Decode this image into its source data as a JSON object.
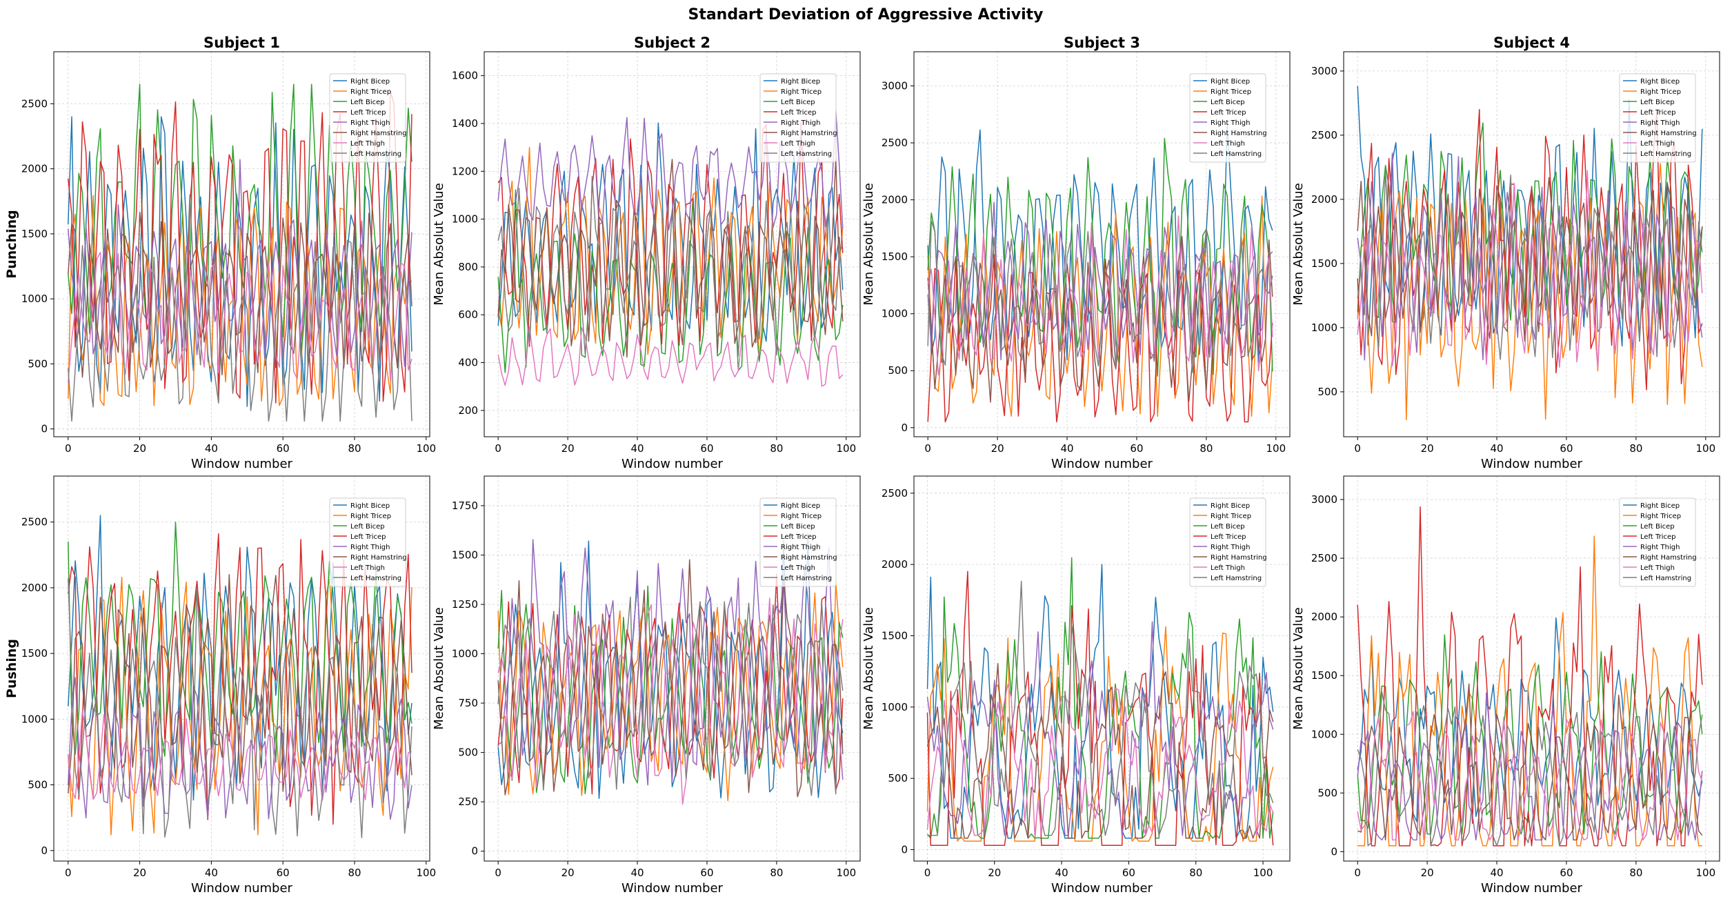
{
  "figure": {
    "suptitle": "Standart Deviation of Aggressive Activity"
  },
  "colors": {
    "Right Bicep": "#1f77b4",
    "Right Tricep": "#ff7f0e",
    "Left Bicep": "#2ca02c",
    "Left Tricep": "#d62728",
    "Right Thigh": "#9467bd",
    "Right Hamstring": "#8c564b",
    "Left Thigh": "#e377c2",
    "Left Hamstring": "#7f7f7f"
  },
  "chart_data": [
    {
      "type": "line",
      "row_label": "Punching",
      "title": "Subject 1",
      "xlabel": "Window number",
      "ylabel": "",
      "n_points": 97,
      "xlim": [
        -4,
        101
      ],
      "ylim": [
        -60,
        2900
      ],
      "xticks": [
        0,
        20,
        40,
        60,
        80,
        100
      ],
      "yticks": [
        0,
        500,
        1000,
        1500,
        2000,
        2500
      ],
      "grid": true,
      "legend": "upper right (inset)",
      "series": [
        {
          "name": "Right Bicep",
          "mean": 1200,
          "amp": 800,
          "period": 5.2,
          "min": 150,
          "max": 2400,
          "seed": 11
        },
        {
          "name": "Right Tricep",
          "mean": 900,
          "amp": 650,
          "period": 5.0,
          "min": 180,
          "max": 2200,
          "seed": 12
        },
        {
          "name": "Left Bicep",
          "mean": 1500,
          "amp": 700,
          "period": 5.4,
          "min": 300,
          "max": 2650,
          "seed": 13
        },
        {
          "name": "Left Tricep",
          "mean": 1300,
          "amp": 900,
          "period": 5.1,
          "min": 200,
          "max": 2600,
          "seed": 14
        },
        {
          "name": "Right Thigh",
          "mean": 1100,
          "amp": 450,
          "period": 4.8,
          "min": 400,
          "max": 2800,
          "seed": 15
        },
        {
          "name": "Right Hamstring",
          "mean": 1000,
          "amp": 450,
          "period": 4.9,
          "min": 250,
          "max": 2000,
          "seed": 16
        },
        {
          "name": "Left Thigh",
          "mean": 800,
          "amp": 350,
          "period": 5.3,
          "min": 200,
          "max": 1600,
          "seed": 17
        },
        {
          "name": "Left Hamstring",
          "mean": 700,
          "amp": 550,
          "period": 5.0,
          "min": 60,
          "max": 1800,
          "seed": 18
        }
      ]
    },
    {
      "type": "line",
      "row_label": "",
      "title": "Subject 2",
      "xlabel": "Window number",
      "ylabel": "Mean Absolut Value",
      "n_points": 100,
      "xlim": [
        -4,
        104
      ],
      "ylim": [
        90,
        1700
      ],
      "xticks": [
        0,
        20,
        40,
        60,
        80,
        100
      ],
      "yticks": [
        200,
        400,
        600,
        800,
        1000,
        1200,
        1400,
        1600
      ],
      "grid": true,
      "legend": "upper right (inset)",
      "series": [
        {
          "name": "Right Bicep",
          "mean": 850,
          "amp": 300,
          "period": 5.5,
          "min": 380,
          "max": 1550,
          "seed": 21
        },
        {
          "name": "Right Tricep",
          "mean": 800,
          "amp": 280,
          "period": 5.3,
          "min": 400,
          "max": 1300,
          "seed": 22
        },
        {
          "name": "Left Bicep",
          "mean": 650,
          "amp": 230,
          "period": 5.6,
          "min": 250,
          "max": 1150,
          "seed": 23
        },
        {
          "name": "Left Tricep",
          "mean": 850,
          "amp": 300,
          "period": 5.4,
          "min": 400,
          "max": 1420,
          "seed": 24
        },
        {
          "name": "Right Thigh",
          "mean": 1150,
          "amp": 150,
          "period": 5.0,
          "min": 700,
          "max": 1630,
          "seed": 25
        },
        {
          "name": "Right Hamstring",
          "mean": 780,
          "amp": 250,
          "period": 5.2,
          "min": 350,
          "max": 1250,
          "seed": 26
        },
        {
          "name": "Left Thigh",
          "mean": 400,
          "amp": 90,
          "period": 5.1,
          "min": 150,
          "max": 700,
          "seed": 27
        },
        {
          "name": "Left Hamstring",
          "mean": 760,
          "amp": 240,
          "period": 5.5,
          "min": 350,
          "max": 1220,
          "seed": 28
        }
      ]
    },
    {
      "type": "line",
      "row_label": "",
      "title": "Subject 3",
      "xlabel": "Window number",
      "ylabel": "Mean Absolut Value",
      "n_points": 100,
      "xlim": [
        -4,
        104
      ],
      "ylim": [
        -80,
        3300
      ],
      "xticks": [
        0,
        20,
        40,
        60,
        80,
        100
      ],
      "yticks": [
        0,
        500,
        1000,
        1500,
        2000,
        2500,
        3000
      ],
      "grid": true,
      "legend": "upper right (inset)",
      "series": [
        {
          "name": "Right Bicep",
          "mean": 1500,
          "amp": 650,
          "period": 5.5,
          "min": 300,
          "max": 2950,
          "seed": 31
        },
        {
          "name": "Right Tricep",
          "mean": 900,
          "amp": 650,
          "period": 5.3,
          "min": 100,
          "max": 2200,
          "seed": 32
        },
        {
          "name": "Left Bicep",
          "mean": 1400,
          "amp": 700,
          "period": 5.6,
          "min": 400,
          "max": 3150,
          "seed": 33
        },
        {
          "name": "Left Tricep",
          "mean": 700,
          "amp": 600,
          "period": 5.4,
          "min": 50,
          "max": 2400,
          "seed": 34
        },
        {
          "name": "Right Thigh",
          "mean": 1200,
          "amp": 450,
          "period": 5.0,
          "min": 300,
          "max": 2300,
          "seed": 35
        },
        {
          "name": "Right Hamstring",
          "mean": 850,
          "amp": 450,
          "period": 5.2,
          "min": 200,
          "max": 2000,
          "seed": 36
        },
        {
          "name": "Left Thigh",
          "mean": 1000,
          "amp": 400,
          "period": 5.1,
          "min": 300,
          "max": 2000,
          "seed": 37
        },
        {
          "name": "Left Hamstring",
          "mean": 1100,
          "amp": 450,
          "period": 5.5,
          "min": 300,
          "max": 2300,
          "seed": 38
        }
      ]
    },
    {
      "type": "line",
      "row_label": "",
      "title": "Subject 4",
      "xlabel": "Window number",
      "ylabel": "Mean Absolut Value",
      "n_points": 100,
      "xlim": [
        -4,
        104
      ],
      "ylim": [
        150,
        3150
      ],
      "xticks": [
        0,
        20,
        40,
        60,
        80,
        100
      ],
      "yticks": [
        500,
        1000,
        1500,
        2000,
        2500,
        3000
      ],
      "grid": true,
      "legend": "upper right (inset)",
      "series": [
        {
          "name": "Right Bicep",
          "mean": 1700,
          "amp": 600,
          "period": 5.2,
          "min": 450,
          "max": 3050,
          "seed": 41
        },
        {
          "name": "Right Tricep",
          "mean": 1200,
          "amp": 650,
          "period": 5.0,
          "min": 200,
          "max": 2600,
          "seed": 42
        },
        {
          "name": "Left Bicep",
          "mean": 1700,
          "amp": 550,
          "period": 5.4,
          "min": 500,
          "max": 3000,
          "seed": 43
        },
        {
          "name": "Left Tricep",
          "mean": 1500,
          "amp": 700,
          "period": 5.1,
          "min": 150,
          "max": 2700,
          "seed": 44
        },
        {
          "name": "Right Thigh",
          "mean": 1400,
          "amp": 500,
          "period": 4.8,
          "min": 400,
          "max": 2600,
          "seed": 45
        },
        {
          "name": "Right Hamstring",
          "mean": 1500,
          "amp": 500,
          "period": 4.9,
          "min": 450,
          "max": 2600,
          "seed": 46
        },
        {
          "name": "Left Thigh",
          "mean": 1300,
          "amp": 450,
          "period": 5.3,
          "min": 400,
          "max": 2500,
          "seed": 47
        },
        {
          "name": "Left Hamstring",
          "mean": 1400,
          "amp": 450,
          "period": 5.0,
          "min": 400,
          "max": 2300,
          "seed": 48
        }
      ]
    },
    {
      "type": "line",
      "row_label": "Pushing",
      "title": "",
      "xlabel": "Window number",
      "ylabel": "",
      "n_points": 97,
      "xlim": [
        -4,
        101
      ],
      "ylim": [
        -80,
        2850
      ],
      "xticks": [
        0,
        20,
        40,
        60,
        80,
        100
      ],
      "yticks": [
        0,
        500,
        1000,
        1500,
        2000,
        2500
      ],
      "grid": true,
      "legend": "upper right (inset)",
      "series": [
        {
          "name": "Right Bicep",
          "mean": 1300,
          "amp": 650,
          "period": 6.0,
          "min": 300,
          "max": 2550,
          "seed": 51
        },
        {
          "name": "Right Tricep",
          "mean": 1100,
          "amp": 700,
          "period": 5.8,
          "min": 100,
          "max": 2450,
          "seed": 52
        },
        {
          "name": "Left Bicep",
          "mean": 1500,
          "amp": 600,
          "period": 6.2,
          "min": 400,
          "max": 2550,
          "seed": 53
        },
        {
          "name": "Left Tricep",
          "mean": 1300,
          "amp": 800,
          "period": 5.9,
          "min": 200,
          "max": 2700,
          "seed": 54
        },
        {
          "name": "Right Thigh",
          "mean": 700,
          "amp": 350,
          "period": 5.7,
          "min": 100,
          "max": 1800,
          "seed": 55
        },
        {
          "name": "Right Hamstring",
          "mean": 1200,
          "amp": 550,
          "period": 6.0,
          "min": 250,
          "max": 2100,
          "seed": 56
        },
        {
          "name": "Left Thigh",
          "mean": 650,
          "amp": 200,
          "period": 5.8,
          "min": 200,
          "max": 1250,
          "seed": 57
        },
        {
          "name": "Left Hamstring",
          "mean": 900,
          "amp": 600,
          "period": 6.1,
          "min": 60,
          "max": 2100,
          "seed": 58
        }
      ]
    },
    {
      "type": "line",
      "row_label": "",
      "title": "",
      "xlabel": "Window number",
      "ylabel": "Mean Absolut Value",
      "n_points": 100,
      "xlim": [
        -4,
        104
      ],
      "ylim": [
        -50,
        1900
      ],
      "xticks": [
        0,
        20,
        40,
        60,
        80,
        100
      ],
      "yticks": [
        0,
        250,
        500,
        750,
        1000,
        1250,
        1500,
        1750
      ],
      "grid": true,
      "legend": "upper right (inset)",
      "series": [
        {
          "name": "Right Bicep",
          "mean": 800,
          "amp": 380,
          "period": 7.0,
          "min": 50,
          "max": 1700,
          "seed": 61
        },
        {
          "name": "Right Tricep",
          "mean": 760,
          "amp": 360,
          "period": 7.0,
          "min": 50,
          "max": 1650,
          "seed": 62
        },
        {
          "name": "Left Bicep",
          "mean": 740,
          "amp": 350,
          "period": 7.0,
          "min": 50,
          "max": 1600,
          "seed": 63
        },
        {
          "name": "Left Tricep",
          "mean": 780,
          "amp": 370,
          "period": 7.0,
          "min": 50,
          "max": 1750,
          "seed": 64
        },
        {
          "name": "Right Thigh",
          "mean": 900,
          "amp": 420,
          "period": 7.0,
          "min": 50,
          "max": 1830,
          "seed": 65
        },
        {
          "name": "Right Hamstring",
          "mean": 760,
          "amp": 360,
          "period": 7.0,
          "min": 30,
          "max": 1650,
          "seed": 66
        },
        {
          "name": "Left Thigh",
          "mean": 740,
          "amp": 350,
          "period": 7.0,
          "min": 50,
          "max": 1600,
          "seed": 67
        },
        {
          "name": "Left Hamstring",
          "mean": 760,
          "amp": 360,
          "period": 7.0,
          "min": 30,
          "max": 1650,
          "seed": 68
        }
      ]
    },
    {
      "type": "line",
      "row_label": "",
      "title": "",
      "xlabel": "Window number",
      "ylabel": "Mean Absolut Value",
      "n_points": 104,
      "xlim": [
        -4,
        108
      ],
      "ylim": [
        -80,
        2620
      ],
      "xticks": [
        0,
        20,
        40,
        60,
        80,
        100
      ],
      "yticks": [
        0,
        500,
        1000,
        1500,
        2000,
        2500
      ],
      "grid": true,
      "legend": "upper right (inset)",
      "series": [
        {
          "name": "Right Bicep",
          "mean": 600,
          "amp": 650,
          "period": 17.0,
          "min": 80,
          "max": 2000,
          "seed": 71
        },
        {
          "name": "Right Tricep",
          "mean": 450,
          "amp": 800,
          "period": 17.0,
          "min": 60,
          "max": 2550,
          "seed": 72
        },
        {
          "name": "Left Bicep",
          "mean": 550,
          "amp": 750,
          "period": 17.0,
          "min": 80,
          "max": 2300,
          "seed": 73
        },
        {
          "name": "Left Tricep",
          "mean": 400,
          "amp": 850,
          "period": 17.0,
          "min": 30,
          "max": 2550,
          "seed": 74
        },
        {
          "name": "Right Thigh",
          "mean": 650,
          "amp": 450,
          "period": 17.0,
          "min": 100,
          "max": 1900,
          "seed": 75
        },
        {
          "name": "Right Hamstring",
          "mean": 500,
          "amp": 500,
          "period": 17.0,
          "min": 80,
          "max": 1700,
          "seed": 76
        },
        {
          "name": "Left Thigh",
          "mean": 550,
          "amp": 400,
          "period": 17.0,
          "min": 100,
          "max": 1600,
          "seed": 77
        },
        {
          "name": "Left Hamstring",
          "mean": 700,
          "amp": 550,
          "period": 17.0,
          "min": 100,
          "max": 2000,
          "seed": 78
        }
      ]
    },
    {
      "type": "line",
      "row_label": "",
      "title": "",
      "xlabel": "Window number",
      "ylabel": "Mean Absolut Value",
      "n_points": 100,
      "xlim": [
        -4,
        104
      ],
      "ylim": [
        -80,
        3200
      ],
      "xticks": [
        0,
        20,
        40,
        60,
        80,
        100
      ],
      "yticks": [
        0,
        500,
        1000,
        1500,
        2000,
        2500,
        3000
      ],
      "grid": true,
      "legend": "upper right (inset)",
      "series": [
        {
          "name": "Right Bicep",
          "mean": 900,
          "amp": 500,
          "period": 9.0,
          "min": 150,
          "max": 2000,
          "seed": 81
        },
        {
          "name": "Right Tricep",
          "mean": 600,
          "amp": 1000,
          "period": 9.0,
          "min": 50,
          "max": 2850,
          "seed": 82
        },
        {
          "name": "Left Bicep",
          "mean": 800,
          "amp": 600,
          "period": 9.0,
          "min": 150,
          "max": 2300,
          "seed": 83
        },
        {
          "name": "Left Tricep",
          "mean": 600,
          "amp": 1100,
          "period": 9.0,
          "min": 50,
          "max": 3100,
          "seed": 84
        },
        {
          "name": "Right Thigh",
          "mean": 500,
          "amp": 450,
          "period": 9.0,
          "min": 100,
          "max": 1700,
          "seed": 85
        },
        {
          "name": "Right Hamstring",
          "mean": 600,
          "amp": 450,
          "period": 9.0,
          "min": 100,
          "max": 1700,
          "seed": 86
        },
        {
          "name": "Left Thigh",
          "mean": 550,
          "amp": 450,
          "period": 9.0,
          "min": 100,
          "max": 1700,
          "seed": 87
        },
        {
          "name": "Left Hamstring",
          "mean": 600,
          "amp": 450,
          "period": 9.0,
          "min": 50,
          "max": 1700,
          "seed": 88
        }
      ]
    }
  ]
}
